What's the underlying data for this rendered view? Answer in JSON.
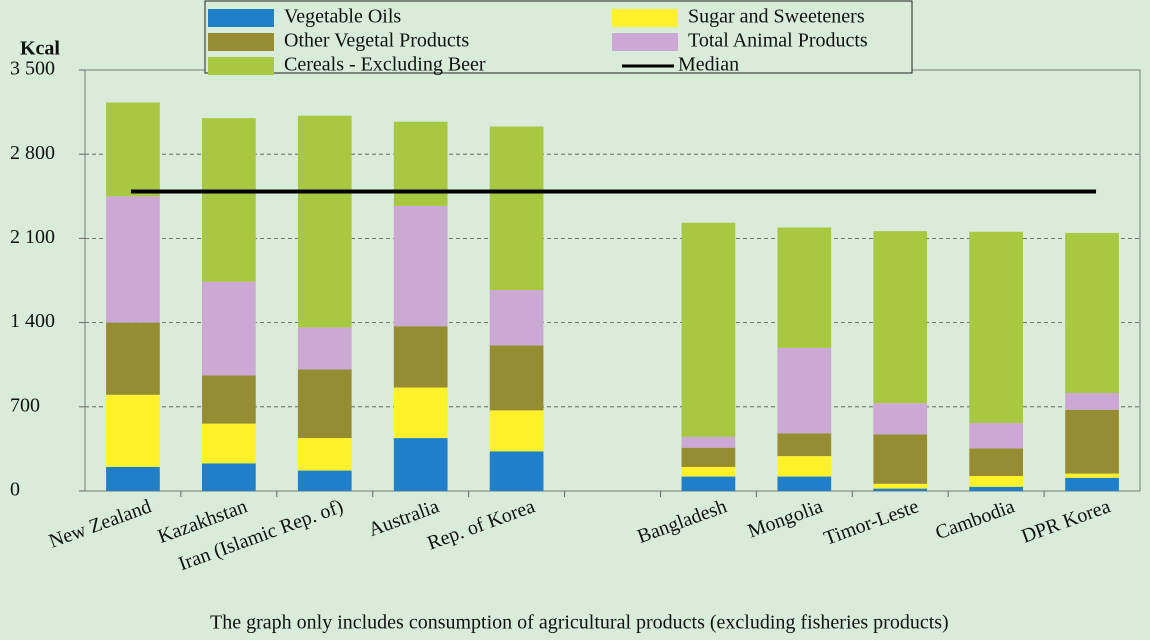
{
  "chart_data": {
    "type": "stacked_bar",
    "y_label": "Kcal",
    "footnote": "The graph only includes consumption of agricultural products (excluding fisheries products)",
    "categories": [
      "New Zealand",
      "Kazakhstan",
      "Iran (Islamic Rep. of)",
      "Australia",
      "Rep. of Korea",
      null,
      "Bangladesh",
      "Mongolia",
      "Timor-Leste",
      "Cambodia",
      "DPR Korea"
    ],
    "series": [
      {
        "name": "Vegetable Oils",
        "color": "#1f7fc9",
        "values": [
          200,
          230,
          170,
          440,
          330,
          null,
          120,
          120,
          20,
          35,
          110
        ]
      },
      {
        "name": "Sugar and Sweeteners",
        "color": "#fff22a",
        "values": [
          600,
          330,
          270,
          420,
          340,
          null,
          80,
          170,
          40,
          90,
          35
        ]
      },
      {
        "name": "Other Vegetal Products",
        "color": "#968c32",
        "values": [
          600,
          400,
          570,
          510,
          540,
          null,
          160,
          190,
          410,
          230,
          530
        ]
      },
      {
        "name": "Total Animal Products",
        "color": "#cca8d4",
        "values": [
          1050,
          780,
          350,
          1000,
          460,
          null,
          90,
          710,
          260,
          210,
          140
        ]
      },
      {
        "name": "Cereals - Excluding Beer",
        "color": "#a7c840",
        "values": [
          780,
          1360,
          1760,
          700,
          1360,
          null,
          1780,
          1000,
          1430,
          1590,
          1330
        ]
      }
    ],
    "median": {
      "name": "Median",
      "color": "#000000",
      "value": 2490
    },
    "ylim": [
      0,
      3500
    ],
    "yticks": [
      0,
      700,
      {
        "value": 1400,
        "label": "1 400"
      },
      {
        "value": 2100,
        "label": "2 100"
      },
      {
        "value": 2800,
        "label": "2 800"
      },
      {
        "value": 3500,
        "label": "3 500"
      }
    ],
    "grid": true
  }
}
